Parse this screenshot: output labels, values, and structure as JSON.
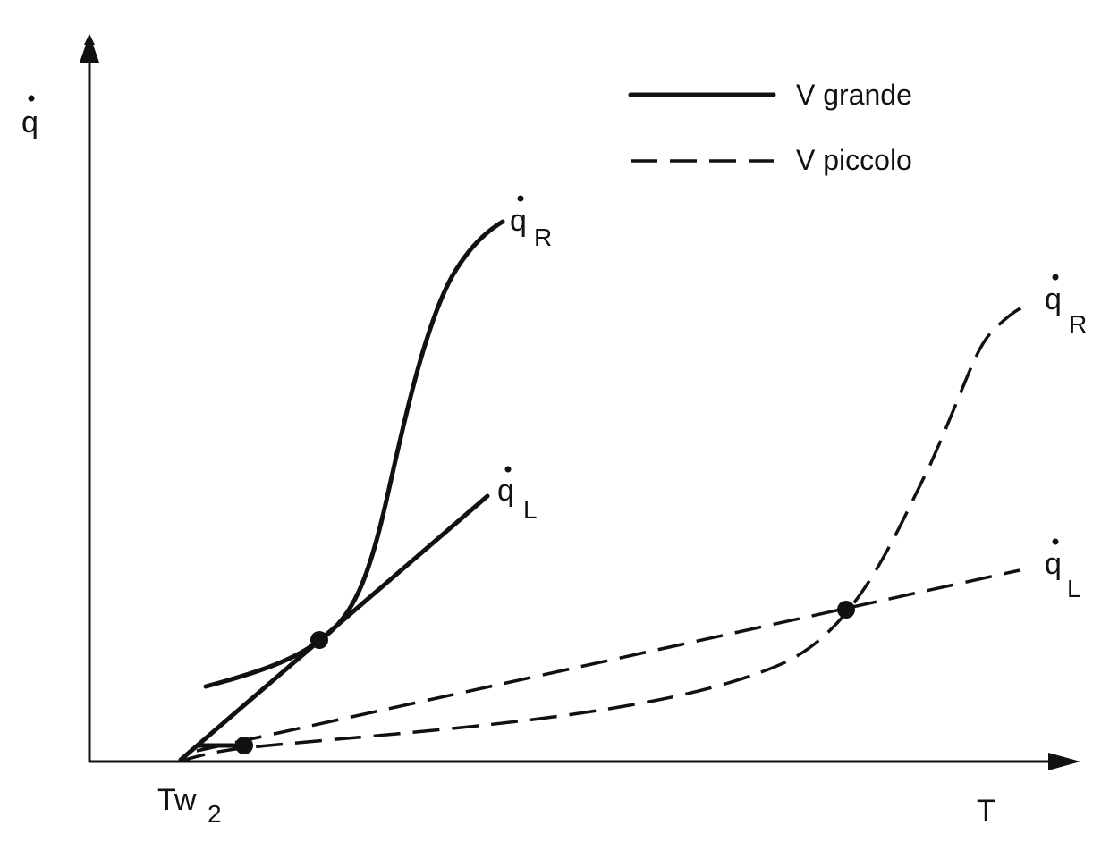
{
  "axes": {
    "y_label": "q",
    "x_label": "T",
    "x_tick": {
      "main": "Tw",
      "sub": "2"
    }
  },
  "legend": {
    "items": [
      {
        "style": "solid",
        "label": "V grande"
      },
      {
        "style": "dashed",
        "label": "V piccolo"
      }
    ]
  },
  "curve_labels": {
    "solid_r": {
      "main": "q",
      "sub": "R"
    },
    "solid_l": {
      "main": "q",
      "sub": "L"
    },
    "dashed_r": {
      "main": "q",
      "sub": "R"
    },
    "dashed_l": {
      "main": "q",
      "sub": "L"
    }
  }
}
